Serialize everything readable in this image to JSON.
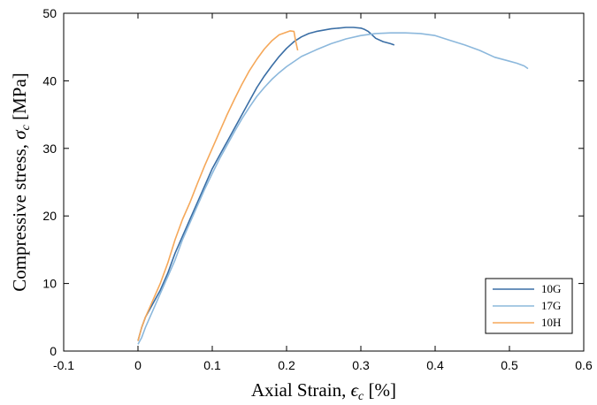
{
  "chart_data": {
    "type": "line",
    "title": "",
    "xlabel_main": "Axial Strain, ",
    "xlabel_sym": "ϵ",
    "xlabel_sub": "c",
    "xlabel_unit": " [%]",
    "ylabel_main": "Compressive stress, ",
    "ylabel_sym": "σ",
    "ylabel_sub": "c",
    "ylabel_unit": " [MPa]",
    "xlim": [
      -0.1,
      0.6
    ],
    "ylim": [
      0,
      50
    ],
    "xticks": [
      -0.1,
      0,
      0.1,
      0.2,
      0.3,
      0.4,
      0.5,
      0.6
    ],
    "xtick_labels": [
      "-0.1",
      "0",
      "0.1",
      "0.2",
      "0.3",
      "0.4",
      "0.5",
      "0.6"
    ],
    "yticks": [
      0,
      10,
      20,
      30,
      40,
      50
    ],
    "ytick_labels": [
      "0",
      "10",
      "20",
      "30",
      "40",
      "50"
    ],
    "grid": false,
    "legend_position": "bottom-right",
    "series": [
      {
        "name": "10G",
        "color": "#3a6ea5",
        "x": [
          0.0,
          0.005,
          0.01,
          0.02,
          0.03,
          0.04,
          0.05,
          0.06,
          0.07,
          0.08,
          0.09,
          0.1,
          0.11,
          0.12,
          0.13,
          0.14,
          0.15,
          0.16,
          0.17,
          0.18,
          0.19,
          0.2,
          0.21,
          0.22,
          0.23,
          0.24,
          0.25,
          0.26,
          0.27,
          0.28,
          0.29,
          0.3,
          0.305,
          0.31,
          0.315,
          0.32,
          0.33,
          0.34,
          0.345
        ],
        "y": [
          1.5,
          3.5,
          5.0,
          7.0,
          9.0,
          11.5,
          14.5,
          17.0,
          19.5,
          22.0,
          24.5,
          27.0,
          29.0,
          31.0,
          33.0,
          35.0,
          37.0,
          39.0,
          40.7,
          42.2,
          43.6,
          44.8,
          45.8,
          46.5,
          47.0,
          47.3,
          47.5,
          47.7,
          47.8,
          47.9,
          47.9,
          47.8,
          47.6,
          47.3,
          46.8,
          46.3,
          45.8,
          45.5,
          45.3
        ]
      },
      {
        "name": "17G",
        "color": "#8cb8dc",
        "x": [
          0.0,
          0.005,
          0.01,
          0.02,
          0.03,
          0.04,
          0.05,
          0.06,
          0.07,
          0.08,
          0.09,
          0.1,
          0.11,
          0.12,
          0.13,
          0.14,
          0.15,
          0.16,
          0.17,
          0.18,
          0.19,
          0.2,
          0.22,
          0.24,
          0.26,
          0.28,
          0.3,
          0.32,
          0.34,
          0.36,
          0.38,
          0.4,
          0.42,
          0.44,
          0.46,
          0.48,
          0.5,
          0.51,
          0.52,
          0.525
        ],
        "y": [
          1.0,
          2.0,
          3.5,
          6.0,
          8.5,
          11.0,
          13.5,
          16.5,
          19.0,
          21.5,
          24.0,
          26.3,
          28.5,
          30.5,
          32.5,
          34.4,
          36.1,
          37.7,
          39.0,
          40.2,
          41.2,
          42.1,
          43.6,
          44.6,
          45.5,
          46.2,
          46.7,
          47.0,
          47.1,
          47.1,
          47.0,
          46.7,
          46.0,
          45.3,
          44.5,
          43.5,
          42.9,
          42.6,
          42.2,
          41.8
        ]
      },
      {
        "name": "10H",
        "color": "#f5a85a",
        "x": [
          0.0,
          0.005,
          0.01,
          0.02,
          0.03,
          0.04,
          0.05,
          0.06,
          0.07,
          0.08,
          0.09,
          0.1,
          0.11,
          0.12,
          0.13,
          0.14,
          0.15,
          0.16,
          0.17,
          0.18,
          0.19,
          0.2,
          0.205,
          0.21,
          0.212,
          0.215
        ],
        "y": [
          1.5,
          3.5,
          5.0,
          7.5,
          10.0,
          13.0,
          16.5,
          19.5,
          22.0,
          24.8,
          27.5,
          30.0,
          32.5,
          35.0,
          37.3,
          39.5,
          41.5,
          43.2,
          44.7,
          45.9,
          46.8,
          47.2,
          47.4,
          47.3,
          46.0,
          44.5
        ]
      }
    ]
  }
}
